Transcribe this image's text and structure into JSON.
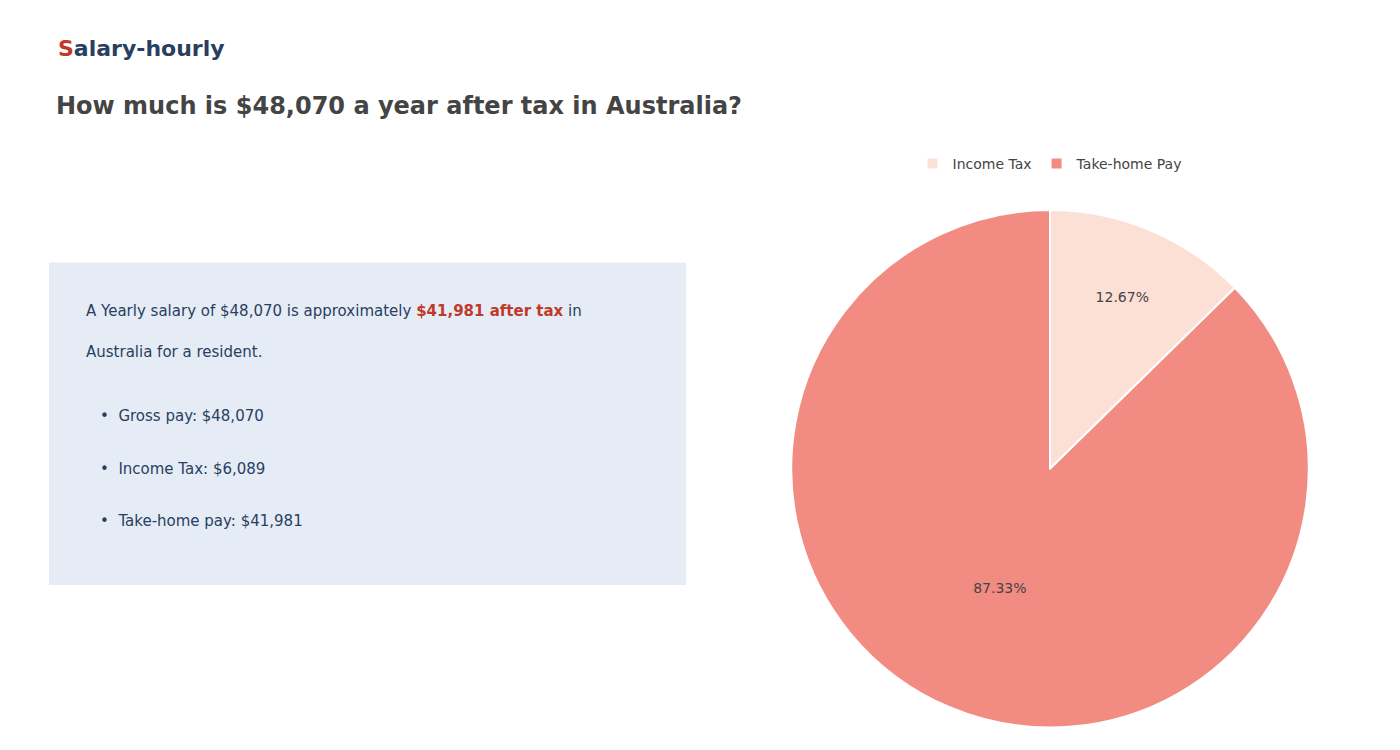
{
  "chart_data": {
    "type": "pie",
    "title": "How much is $48,070 a year after tax in Australia?",
    "categories": [
      "Income Tax",
      "Take-home Pay"
    ],
    "values": [
      12.67,
      87.33
    ],
    "value_labels": [
      "12.67%",
      "87.33%"
    ],
    "colors": [
      "#fce0d5",
      "#f28b82"
    ],
    "data_labels": true,
    "legend": "top",
    "annotations": [
      [
        {
          "text": "S",
          "color": "#c0392b"
        },
        {
          "text": "alary-hourly"
        }
      ],
      [
        {
          "text": "A Yearly salary of $48,070 is approximately "
        },
        {
          "text": "$41,981 after tax",
          "color": "#c0392b"
        },
        {
          "text": " in"
        }
      ],
      [
        {
          "text": "Australia for a resident."
        }
      ],
      [
        {
          "text": "•  Gross pay: $48,070"
        }
      ],
      [
        {
          "text": "•  Income Tax: $6,089"
        }
      ],
      [
        {
          "text": "•  Take-home pay: $41,981"
        }
      ]
    ]
  }
}
